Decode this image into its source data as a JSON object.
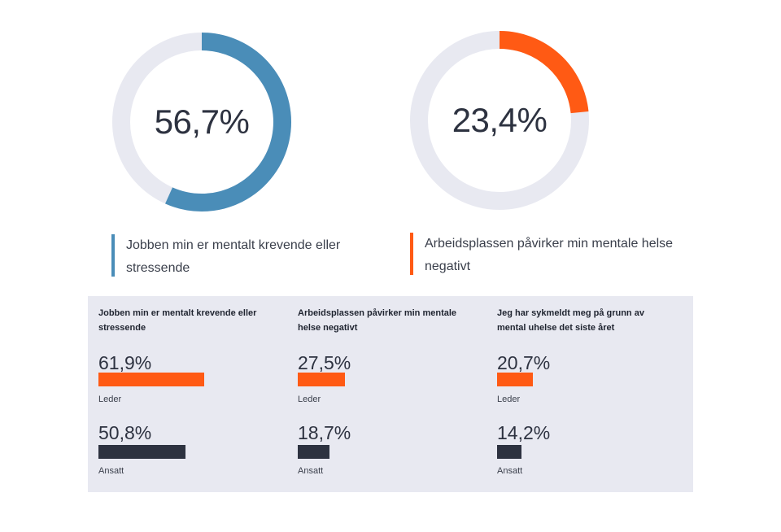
{
  "colors": {
    "blue": "#4a8db8",
    "orange": "#ff5a14",
    "track": "#e8e9f1",
    "dark": "#2d3240",
    "panel": "#e8e9f1"
  },
  "chart_data": [
    {
      "type": "pie",
      "variant": "donut",
      "value": 56.7,
      "value_label": "56,7%",
      "color": "#4a8db8",
      "caption": "Jobben min er mentalt krevende eller stressende"
    },
    {
      "type": "pie",
      "variant": "donut",
      "value": 23.4,
      "value_label": "23,4%",
      "color": "#ff5a14",
      "caption": "Arbeidsplassen påvirker min mentale helse negativt"
    },
    {
      "type": "bar",
      "orientation": "horizontal",
      "xlim": [
        0,
        100
      ],
      "groups": [
        {
          "title": "Jobben min er mentalt krevende eller stressende",
          "bars": [
            {
              "label": "Leder",
              "value": 61.9,
              "value_label": "61,9%",
              "color": "#ff5a14"
            },
            {
              "label": "Ansatt",
              "value": 50.8,
              "value_label": "50,8%",
              "color": "#2d3240"
            }
          ]
        },
        {
          "title": "Arbeidsplassen påvirker min mentale helse negativt",
          "bars": [
            {
              "label": "Leder",
              "value": 27.5,
              "value_label": "27,5%",
              "color": "#ff5a14"
            },
            {
              "label": "Ansatt",
              "value": 18.7,
              "value_label": "18,7%",
              "color": "#2d3240"
            }
          ]
        },
        {
          "title": "Jeg har sykmeldt meg på grunn av mental uhelse det siste året",
          "bars": [
            {
              "label": "Leder",
              "value": 20.7,
              "value_label": "20,7%",
              "color": "#ff5a14"
            },
            {
              "label": "Ansatt",
              "value": 14.2,
              "value_label": "14,2%",
              "color": "#2d3240"
            }
          ]
        }
      ]
    }
  ]
}
